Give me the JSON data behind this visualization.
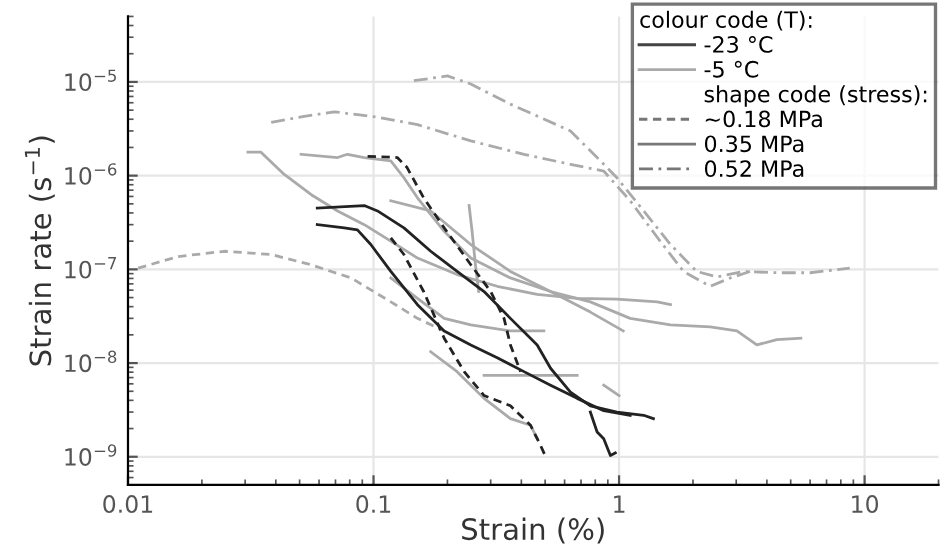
{
  "chart_data": {
    "type": "line",
    "xlabel": "Strain (%)",
    "ylabel": "Strain rate (s$^{−1}$)",
    "log": "xy",
    "grid": true,
    "legend": "top right",
    "legend_title": "colour code (T):",
    "xlim": [
      0.01,
      20
    ],
    "xticks": [
      0.01,
      0.1,
      1,
      10
    ],
    "ylim": [
      5e-10,
      5e-05
    ],
    "yticks": [
      {
        "value": 1e-09,
        "label": "10$^{−9}$"
      },
      {
        "value": 1e-08,
        "label": "10$^{−8}$"
      },
      {
        "value": 1e-07,
        "label": "10$^{−7}$"
      },
      {
        "value": 1e-06,
        "label": "10$^{−6}$"
      },
      {
        "value": 1e-05,
        "label": "10$^{−5}$"
      }
    ],
    "series": [
      {
        "name": "-23 °C",
        "color": "#444444",
        "line_style": "solid"
      },
      {
        "name": "-5 °C",
        "color": "#aaaaaa",
        "line_style": "solid"
      },
      {
        "name": "shape code (stress):",
        "line_style": "none"
      },
      {
        "name": "~0.18 MPa",
        "color": "#777777",
        "line_style": "dashed"
      },
      {
        "name": "0.35 MPa",
        "color": "#777777",
        "line_style": "solid"
      },
      {
        "name": "0.52 MPa",
        "color": "#777777",
        "line_style": "dashdot"
      },
      {
        "color": "#aaaaaa",
        "line_style": "dashdot",
        "x": [
          0.146,
          0.2,
          0.249,
          0.361,
          0.634,
          0.814,
          0.98,
          1.26,
          1.62,
          2.07,
          2.5,
          3.21,
          4.39,
          6.0,
          8.7
        ],
        "values": [
          1.03e-05,
          1.16e-05,
          9.5e-06,
          5.8e-06,
          3e-06,
          1.56e-06,
          9.5e-07,
          4.2e-07,
          1.84e-07,
          9.5e-08,
          8.3e-08,
          9.5e-08,
          9.2e-08,
          9.2e-08,
          1.03e-07
        ]
      },
      {
        "color": "#aaaaaa",
        "line_style": "dashdot",
        "x": [
          0.0383,
          0.0522,
          0.0692,
          0.1038,
          0.151,
          0.249,
          0.41,
          0.634,
          0.866,
          1.11,
          1.43,
          1.83,
          2.35,
          2.84,
          3.42
        ],
        "values": [
          3.7e-06,
          4.3e-06,
          4.8e-06,
          4.2e-06,
          3.5e-06,
          2.35e-06,
          1.69e-06,
          1.32e-06,
          1.12e-06,
          5.4e-07,
          2.2e-07,
          9.5e-08,
          6.6e-08,
          8.1e-08,
          9.5e-08
        ]
      },
      {
        "color": "#aaaaaa",
        "line_style": "dashed",
        "x": [
          0.011,
          0.016,
          0.0247,
          0.0383,
          0.0556,
          0.081,
          0.1176,
          0.151,
          0.194
        ],
        "values": [
          1.03e-07,
          1.37e-07,
          1.56e-07,
          1.44e-07,
          1.12e-07,
          8.1e-08,
          4.5e-08,
          3e-08,
          2.2e-08
        ]
      },
      {
        "color": "#aaaaaa",
        "line_style": "solid",
        "x": [
          0.0308,
          0.0348,
          0.0433,
          0.0556,
          0.0714,
          0.0917,
          0.1176,
          0.151,
          0.219,
          0.319,
          0.464,
          0.675,
          0.98,
          1.43,
          1.62
        ],
        "values": [
          1.78e-06,
          1.78e-06,
          1.03e-06,
          6.3e-07,
          4.2e-07,
          3e-07,
          2e-07,
          1.32e-07,
          8.8e-08,
          6.6e-08,
          5.4e-08,
          4.9e-08,
          4.8e-08,
          4.5e-08,
          4.2e-08
        ]
      },
      {
        "color": "#aaaaaa",
        "line_style": "solid",
        "x": [
          0.0507,
          0.0714,
          0.0783,
          0.0917,
          0.1176,
          0.133,
          0.151,
          0.194,
          0.249,
          0.361,
          0.526,
          0.764,
          1.11,
          1.62,
          2.35,
          3.02,
          3.64,
          4.39,
          5.5
        ],
        "values": [
          1.69e-06,
          1.56e-06,
          1.69e-06,
          1.56e-06,
          1.44e-06,
          9.5e-07,
          5.8e-07,
          2.55e-07,
          1.32e-07,
          8.1e-08,
          5.8e-08,
          4.5e-08,
          3e-08,
          2.55e-08,
          2.43e-08,
          2.2e-08,
          1.56e-08,
          1.78e-08,
          1.84e-08
        ]
      },
      {
        "color": "#aaaaaa",
        "line_style": "solid",
        "x": [
          0.1176,
          0.171,
          0.249,
          0.361,
          0.526,
          0.764,
          1.04
        ],
        "values": [
          5.4e-07,
          4.2e-07,
          1.84e-07,
          9.5e-08,
          5.8e-08,
          3.5e-08,
          2.2e-08
        ]
      },
      {
        "color": "#aaaaaa",
        "line_style": "solid",
        "x": [
          0.245,
          0.252,
          0.26,
          0.268
        ],
        "values": [
          4.8e-07,
          2.55e-07,
          1.12e-07,
          5.8e-08
        ]
      },
      {
        "color": "#aaaaaa",
        "line_style": "solid",
        "x": [
          0.1176,
          0.151,
          0.194,
          0.249,
          0.361,
          0.494
        ],
        "values": [
          8.1e-08,
          4.9e-08,
          3e-08,
          2.55e-08,
          2.2e-08,
          2.2e-08
        ]
      },
      {
        "color": "#aaaaaa",
        "line_style": "solid",
        "x": [
          0.171,
          0.219,
          0.282,
          0.361,
          0.436,
          0.464
        ],
        "values": [
          1.32e-08,
          8.1e-09,
          4.2e-09,
          2.55e-09,
          2.17e-09,
          1.56e-09
        ]
      },
      {
        "color": "#aaaaaa",
        "line_style": "solid",
        "x": [
          0.282,
          0.464,
          0.675
        ],
        "values": [
          7.4e-09,
          7.4e-09,
          7.4e-09
        ]
      },
      {
        "color": "#aaaaaa",
        "line_style": "solid",
        "x": [
          0.866,
          1.0
        ],
        "values": [
          5.8e-09,
          4.5e-09
        ]
      },
      {
        "color": "#222222",
        "line_style": "dashed",
        "x": [
          0.0946,
          0.125,
          0.137,
          0.16,
          0.194,
          0.249,
          0.3,
          0.34,
          0.361,
          0.397
        ],
        "values": [
          1.61e-06,
          1.56e-06,
          1.22e-06,
          5.8e-07,
          2.77e-07,
          1.12e-07,
          5.8e-08,
          3e-08,
          1.56e-08,
          8.1e-09
        ]
      },
      {
        "color": "#222222",
        "line_style": "dashed",
        "x": [
          0.1176,
          0.133,
          0.16,
          0.194,
          0.234,
          0.282,
          0.361,
          0.436,
          0.479,
          0.5
        ],
        "values": [
          2.17e-07,
          1.44e-07,
          5.8e-08,
          1.84e-08,
          8.1e-09,
          4.5e-09,
          3.5e-09,
          2.17e-09,
          1.32e-09,
          1.03e-09
        ]
      },
      {
        "color": "#222222",
        "line_style": "solid",
        "x": [
          0.059,
          0.0917,
          0.1038,
          0.133,
          0.171,
          0.219,
          0.282,
          0.361,
          0.464,
          0.526,
          0.634,
          0.764,
          0.98,
          1.26,
          1.38
        ],
        "values": [
          4.5e-07,
          4.8e-07,
          4.2e-07,
          2.77e-07,
          1.56e-07,
          9.5e-08,
          5.8e-08,
          3e-08,
          1.56e-08,
          8.8e-09,
          4.9e-09,
          3.5e-09,
          3e-09,
          2.77e-09,
          2.55e-09
        ]
      },
      {
        "color": "#222222",
        "line_style": "solid",
        "x": [
          0.059,
          0.076,
          0.086,
          0.0975,
          0.1176,
          0.151,
          0.194,
          0.249,
          0.319,
          0.41,
          0.526,
          0.675,
          0.866,
          1.11
        ],
        "values": [
          3e-07,
          2.77e-07,
          2.64e-07,
          1.84e-07,
          9.5e-08,
          4.2e-08,
          2.2e-08,
          1.56e-08,
          1.14e-08,
          8.1e-09,
          5.8e-09,
          4.2e-09,
          3.1e-09,
          2.77e-09
        ]
      },
      {
        "color": "#222222",
        "line_style": "solid",
        "x": [
          0.764,
          0.814,
          0.866,
          0.922,
          0.966
        ],
        "values": [
          3e-09,
          1.84e-09,
          1.56e-09,
          1.03e-09,
          1.1e-09
        ]
      }
    ]
  }
}
